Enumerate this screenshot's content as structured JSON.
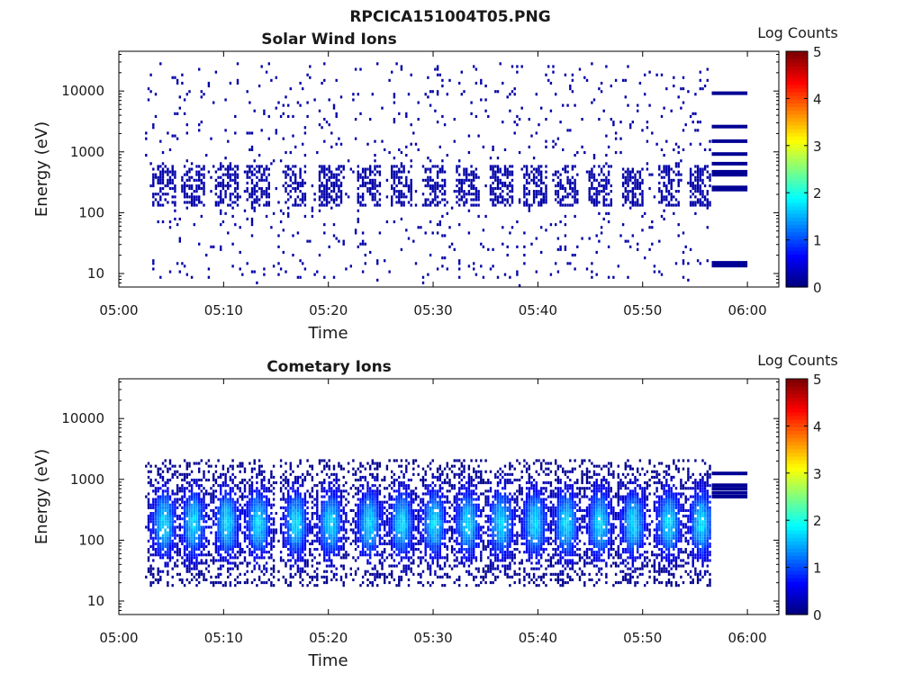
{
  "figure": {
    "title": "RPCICA151004T05.PNG"
  },
  "colors": {
    "colormap": "jet",
    "background": "#ffffff",
    "axis": "#000000"
  },
  "chart_data": [
    {
      "type": "heatmap",
      "title": "Solar Wind Ions",
      "xlabel": "Time",
      "ylabel": "Energy (eV)",
      "x_ticks": [
        "05:00",
        "05:10",
        "05:20",
        "05:30",
        "05:40",
        "05:50",
        "06:00"
      ],
      "x_tick_minutes": [
        0,
        10,
        20,
        30,
        40,
        50,
        60
      ],
      "xlim_minutes": [
        0,
        63
      ],
      "y_ticks": [
        "10",
        "100",
        "1000",
        "10000"
      ],
      "y_tick_values": [
        10,
        100,
        1000,
        10000
      ],
      "ylim": [
        6,
        45000
      ],
      "y_scale": "log",
      "colorbar": {
        "label": "Log Counts",
        "ticks": [
          "0",
          "1",
          "2",
          "3",
          "4",
          "5"
        ],
        "range": [
          0,
          5
        ]
      },
      "data_range_minutes": [
        2.5,
        56.5
      ],
      "scan_centers_minutes": [
        4.2,
        7.0,
        10.2,
        13.2,
        16.8,
        20.1,
        23.8,
        26.9,
        30.0,
        33.2,
        36.4,
        39.6,
        42.6,
        45.8,
        49.0,
        52.4,
        55.5
      ],
      "typical_log_counts": 0.2,
      "core_energy_range_eV": [
        120,
        600
      ],
      "background_energy_range_eV": [
        8,
        30000
      ],
      "calibration_segment": {
        "x_range_minutes": [
          56.6,
          60.0
        ],
        "lines_eV": [
          9200,
          2600,
          1500,
          920,
          640,
          470,
          420,
          260,
          240,
          15,
          13.5
        ],
        "log_counts": 0.1
      }
    },
    {
      "type": "heatmap",
      "title": "Cometary Ions",
      "xlabel": "Time",
      "ylabel": "Energy (eV)",
      "x_ticks": [
        "05:00",
        "05:10",
        "05:20",
        "05:30",
        "05:40",
        "05:50",
        "06:00"
      ],
      "x_tick_minutes": [
        0,
        10,
        20,
        30,
        40,
        50,
        60
      ],
      "xlim_minutes": [
        0,
        63
      ],
      "y_ticks": [
        "10",
        "100",
        "1000",
        "10000"
      ],
      "y_tick_values": [
        10,
        100,
        1000,
        10000
      ],
      "ylim": [
        6,
        45000
      ],
      "y_scale": "log",
      "colorbar": {
        "label": "Log Counts",
        "ticks": [
          "0",
          "1",
          "2",
          "3",
          "4",
          "5"
        ],
        "range": [
          0,
          5
        ]
      },
      "data_range_minutes": [
        2.5,
        56.5
      ],
      "scan_centers_minutes": [
        4.2,
        7.0,
        10.2,
        13.2,
        16.8,
        20.1,
        23.8,
        26.9,
        30.0,
        33.2,
        36.4,
        39.6,
        42.6,
        45.8,
        49.0,
        52.4,
        55.5
      ],
      "peak_energy_eV": 180,
      "peak_log_counts": 1.7,
      "energy_range_eV": [
        25,
        2000
      ],
      "calibration_segment": {
        "x_range_minutes": [
          56.6,
          60.0
        ],
        "lines_eV": [
          1250,
          800,
          700,
          600,
          520
        ],
        "log_counts": 0.1
      }
    }
  ]
}
